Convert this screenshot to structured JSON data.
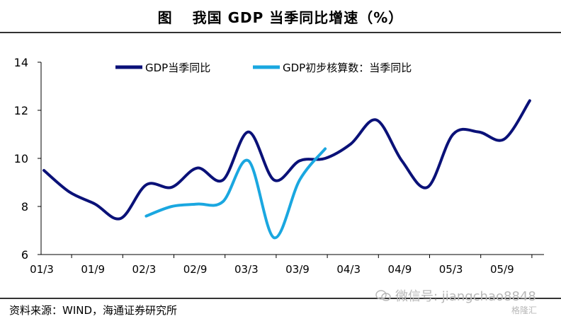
{
  "title": {
    "figure_label": "图",
    "text": "我国 GDP 当季同比增速（%）"
  },
  "source": "资料来源：WIND，海通证券研究所",
  "watermark": {
    "wechat": "微信号: jiangchao8848",
    "brand": "格隆汇"
  },
  "chart_data": {
    "type": "line",
    "title": "我国 GDP 当季同比增速（%）",
    "xlabel": "",
    "ylabel": "",
    "ylim": [
      6,
      14
    ],
    "yticks": [
      6,
      8,
      10,
      12,
      14
    ],
    "x_tick_labels": [
      "01/3",
      "01/9",
      "02/3",
      "02/9",
      "03/3",
      "03/9",
      "04/3",
      "04/9",
      "05/3",
      "05/9"
    ],
    "legend": "top",
    "series": [
      {
        "name": "GDP当季同比",
        "color": "#0a1178",
        "x": [
          0,
          0.5,
          1,
          1.5,
          2,
          2.5,
          3,
          3.5,
          4,
          4.5,
          5,
          5.5,
          6,
          6.5,
          7,
          7.5,
          8,
          8.5,
          9,
          9.5
        ],
        "values": [
          9.5,
          8.6,
          8.1,
          7.5,
          8.9,
          8.8,
          9.6,
          9.1,
          11.1,
          9.1,
          9.9,
          10.0,
          10.6,
          11.6,
          9.9,
          8.8,
          11.0,
          11.1,
          10.8,
          12.4
        ]
      },
      {
        "name": "GDP初步核算数：当季同比",
        "color": "#1aa7e0",
        "x": [
          2,
          2.5,
          3,
          3.5,
          4,
          4.5,
          5,
          5.5
        ],
        "values": [
          7.6,
          8.0,
          8.1,
          8.2,
          9.9,
          6.7,
          9.1,
          10.4
        ]
      }
    ]
  }
}
